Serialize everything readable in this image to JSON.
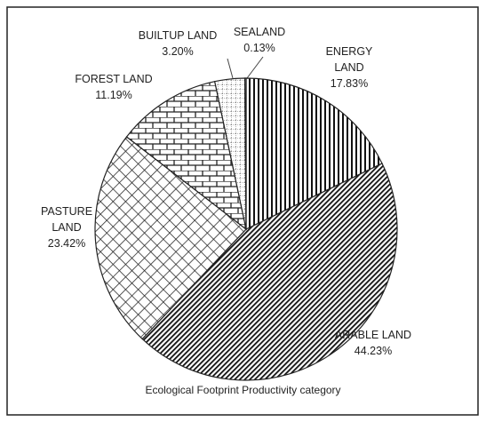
{
  "chart_data": {
    "type": "pie",
    "caption": "Ecological Footprint Productivity category",
    "categories": [
      "ENERGY LAND",
      "ARABLE LAND",
      "PASTURE LAND",
      "FOREST LAND",
      "BUILTUP LAND",
      "SEALAND"
    ],
    "values": [
      17.83,
      44.23,
      23.42,
      11.19,
      3.2,
      0.13
    ],
    "value_labels": [
      "17.83%",
      "44.23%",
      "23.42%",
      "11.19%",
      "3.20%",
      "0.13%"
    ]
  }
}
